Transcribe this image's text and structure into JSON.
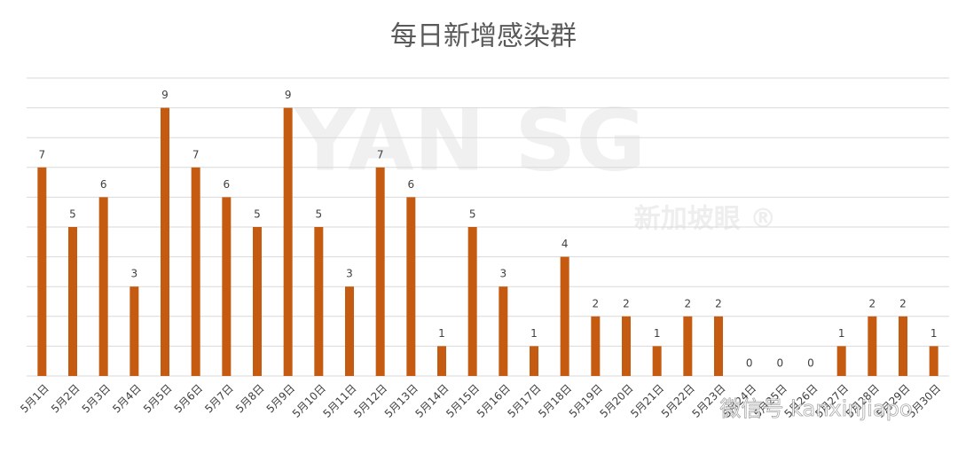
{
  "chart_data": {
    "type": "bar",
    "title": "每日新增感染群",
    "categories": [
      "5月1日",
      "5月2日",
      "5月3日",
      "5月4日",
      "5月5日",
      "5月6日",
      "5月7日",
      "5月8日",
      "5月9日",
      "5月10日",
      "5月11日",
      "5月12日",
      "5月13日",
      "5月14日",
      "5月15日",
      "5月16日",
      "5月17日",
      "5月18日",
      "5月19日",
      "5月20日",
      "5月21日",
      "5月22日",
      "5月23日",
      "5月24日",
      "5月25日",
      "5月26日",
      "5月27日",
      "5月28日",
      "5月29日",
      "5月30日"
    ],
    "values": [
      7,
      5,
      6,
      3,
      9,
      7,
      6,
      5,
      9,
      5,
      3,
      7,
      6,
      1,
      5,
      3,
      1,
      4,
      2,
      2,
      1,
      2,
      2,
      0,
      0,
      0,
      1,
      2,
      2,
      1
    ],
    "color": "#c55a11",
    "ylim": [
      0,
      10
    ],
    "yticks": [
      0,
      1,
      2,
      3,
      4,
      5,
      6,
      7,
      8,
      9,
      10
    ],
    "grid": true,
    "watermark": {
      "brand": "YAN  SG",
      "sub": "新加坡眼 ®",
      "wechat": "微信号 kanxinjiapo"
    }
  }
}
